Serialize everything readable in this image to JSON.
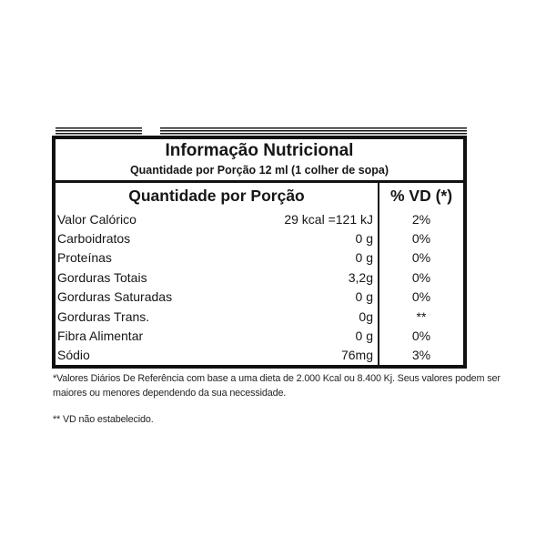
{
  "label": {
    "title": "Informação Nutricional",
    "subtitle": "Quantidade por Porção 12 ml (1 colher de sopa)",
    "columns": {
      "left": "Quantidade por Porção",
      "right": "% VD (*)"
    },
    "rows": [
      {
        "name": "Valor Calórico",
        "amount": "29 kcal =121 kJ",
        "vd": "2%"
      },
      {
        "name": "Carboidratos",
        "amount": "0 g",
        "vd": "0%"
      },
      {
        "name": "Proteínas",
        "amount": "0 g",
        "vd": "0%"
      },
      {
        "name": "Gorduras Totais",
        "amount": "3,2g",
        "vd": "0%"
      },
      {
        "name": "Gorduras Saturadas",
        "amount": "0 g",
        "vd": "0%"
      },
      {
        "name": "Gorduras Trans.",
        "amount": "0g",
        "vd": "**"
      },
      {
        "name": "Fibra Alimentar",
        "amount": "0 g",
        "vd": "0%"
      },
      {
        "name": "Sódio",
        "amount": "76mg",
        "vd": "3%"
      }
    ],
    "footnotes": [
      "*Valores Diários De Referência com base a uma dieta de 2.000 Kcal ou 8.400 Kj. Seus valores podem ser maiores ou menores dependendo da sua necessidade.",
      "** VD não estabelecido."
    ],
    "colors": {
      "text": "#161616",
      "border": "#111111",
      "background": "#ffffff"
    }
  }
}
